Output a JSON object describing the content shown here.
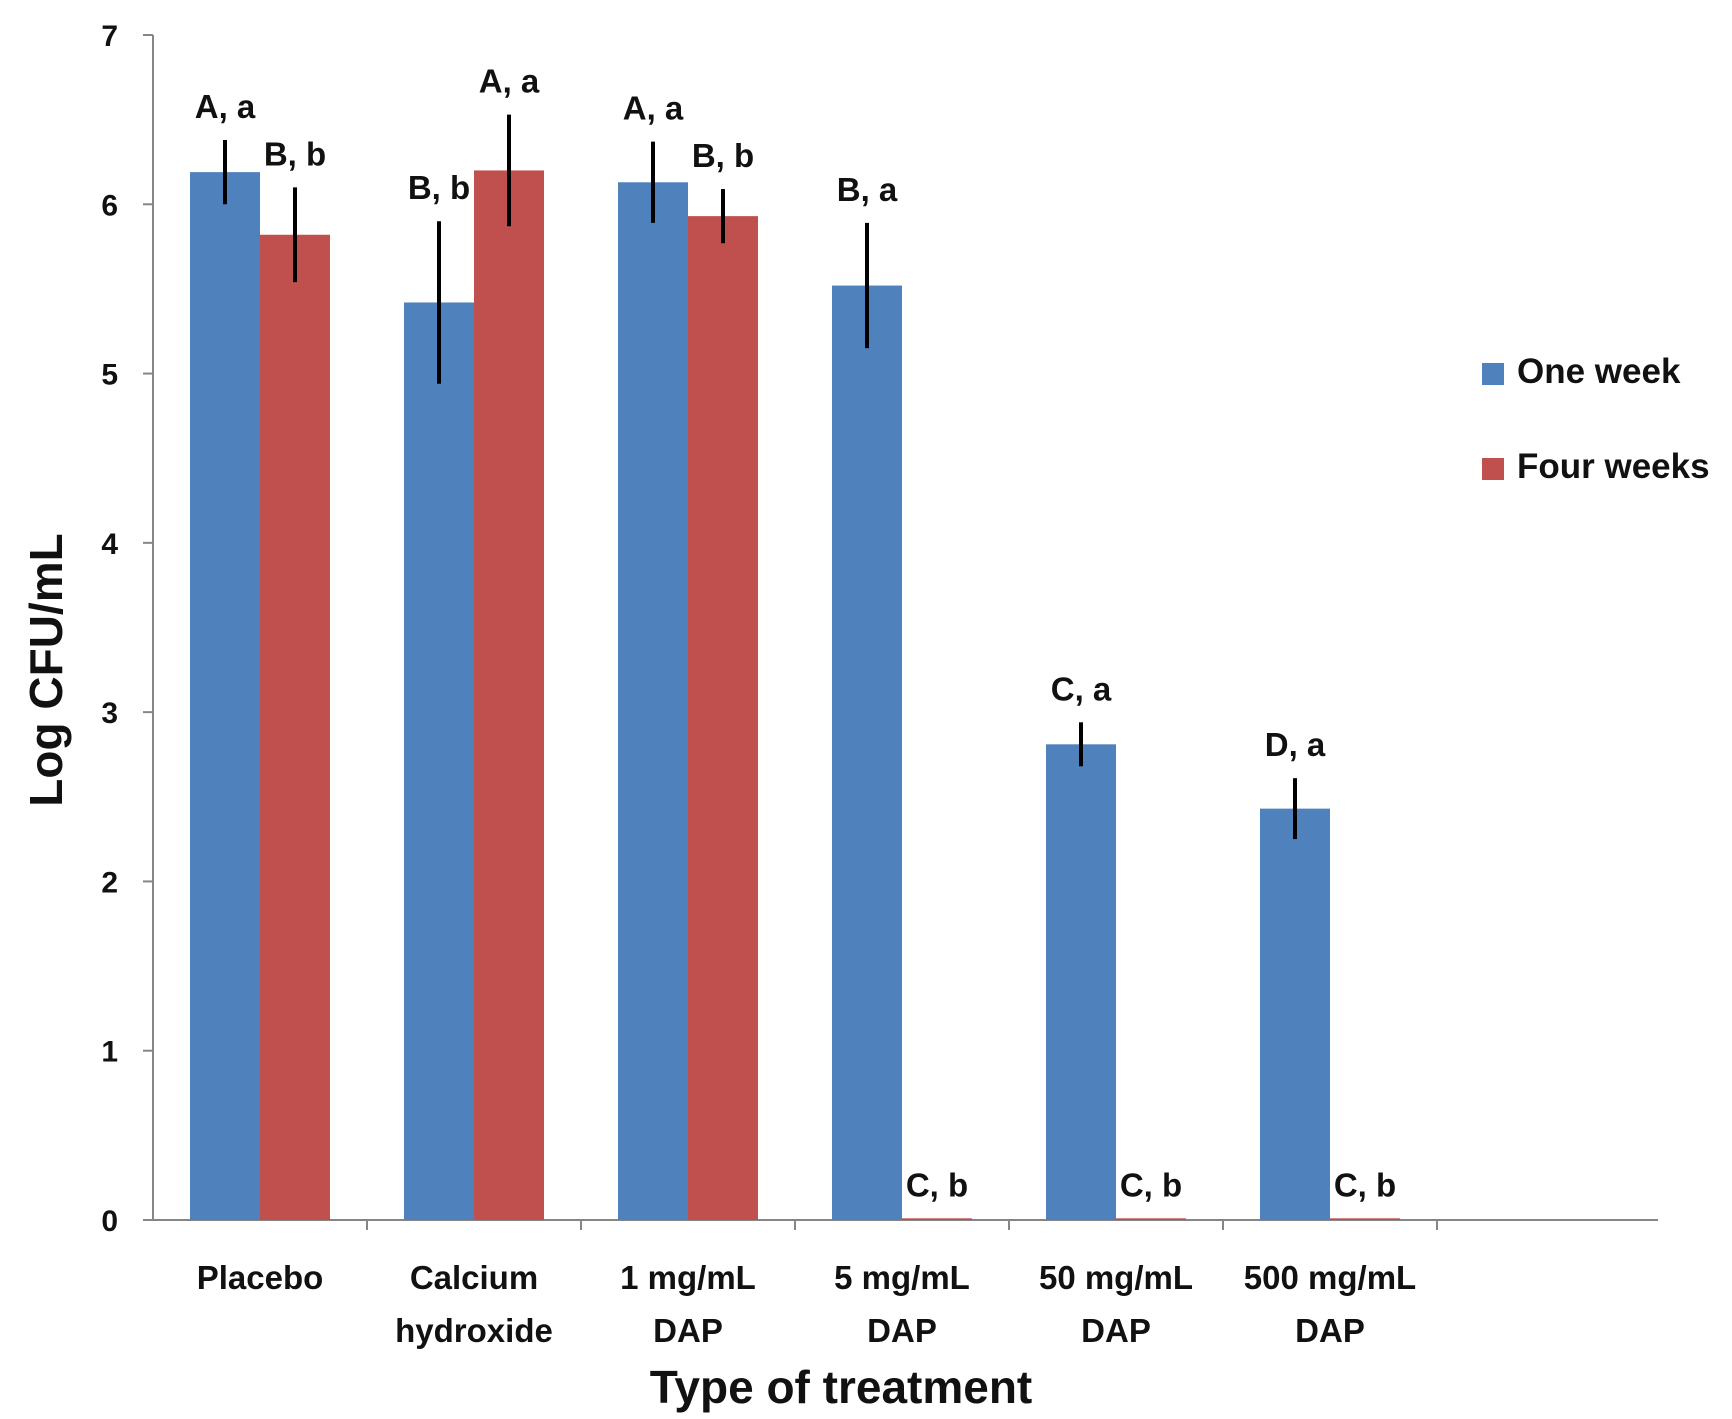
{
  "chart_data": {
    "type": "bar",
    "title": "",
    "xlabel": "Type of treatment",
    "ylabel": "Log CFU/mL",
    "ylim": [
      0,
      7
    ],
    "yticks": [
      "0",
      "1",
      "2",
      "3",
      "4",
      "5",
      "6",
      "7"
    ],
    "grid": false,
    "legend_position": "right",
    "categories": [
      [
        "Placebo"
      ],
      [
        "Calcium",
        "hydroxide"
      ],
      [
        "1 mg/mL",
        "DAP"
      ],
      [
        "5 mg/mL",
        "DAP"
      ],
      [
        "50 mg/mL",
        "DAP"
      ],
      [
        "500 mg/mL",
        "DAP"
      ]
    ],
    "series": [
      {
        "name": "One week",
        "color": "#4f81bd",
        "values": [
          6.19,
          5.42,
          6.13,
          5.52,
          2.81,
          2.43
        ],
        "error": [
          0.19,
          0.48,
          0.24,
          0.37,
          0.13,
          0.18
        ],
        "labels": [
          "A, a",
          "B, b",
          "A, a",
          "B, a",
          "C, a",
          "D, a"
        ]
      },
      {
        "name": "Four weeks",
        "color": "#c0504d",
        "values": [
          5.82,
          6.2,
          5.93,
          0.01,
          0.01,
          0.01
        ],
        "error": [
          0.28,
          0.33,
          0.16,
          0.0,
          0.0,
          0.0
        ],
        "labels": [
          "B, b",
          "A, a",
          "B, b",
          "C, b",
          "C, b",
          "C, b"
        ]
      }
    ]
  }
}
